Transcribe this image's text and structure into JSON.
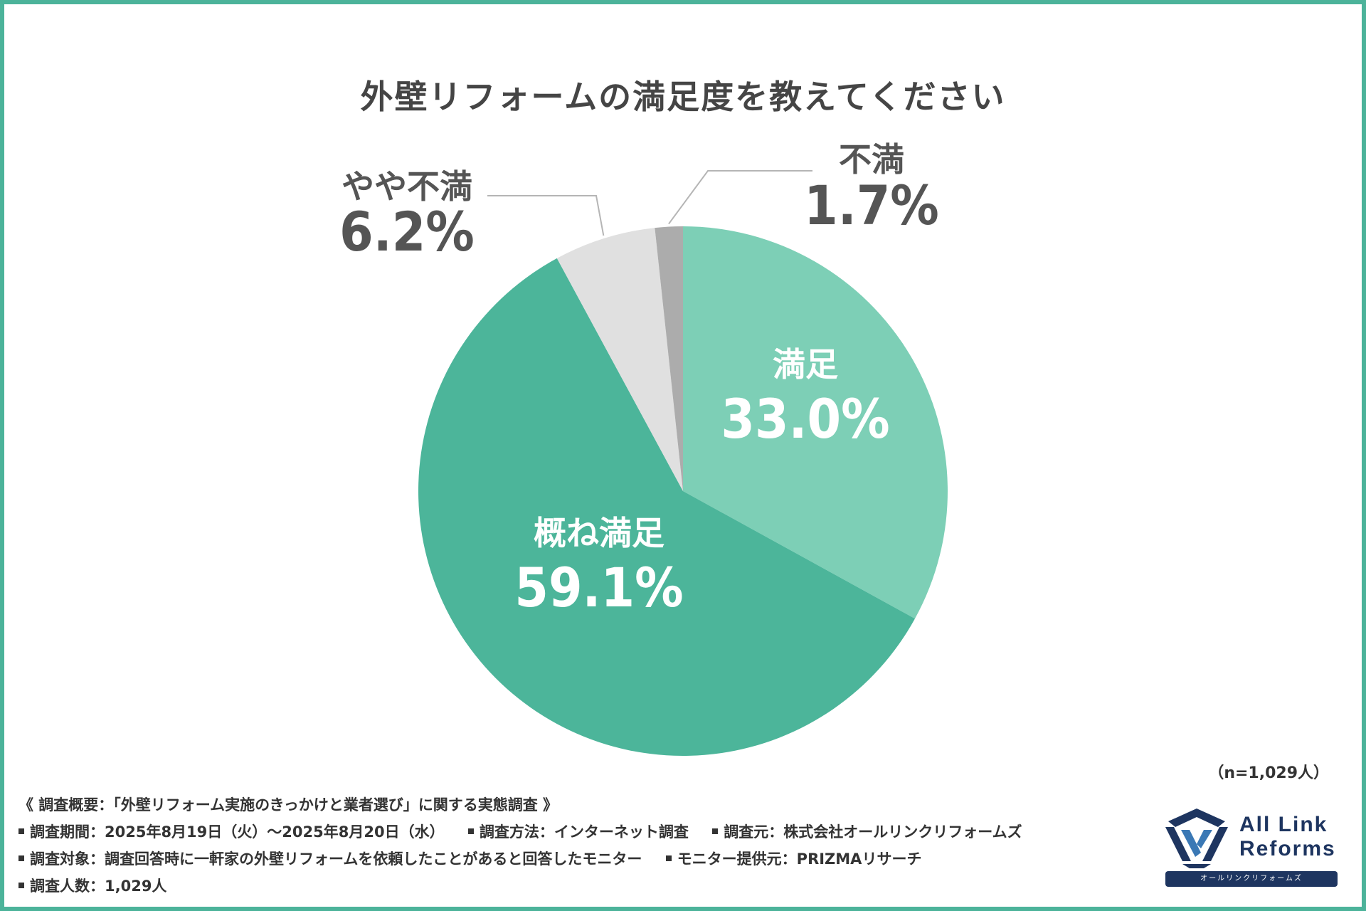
{
  "chart_data": {
    "type": "pie",
    "title": "外壁リフォームの満足度を教えてください",
    "slices": [
      {
        "label": "満足",
        "value_text": "33.0%",
        "value": 33.0,
        "color": "#7dcfb6"
      },
      {
        "label": "概ね満足",
        "value_text": "59.1%",
        "value": 59.1,
        "color": "#4cb59a"
      },
      {
        "label": "やや不満",
        "value_text": "6.2%",
        "value": 6.2,
        "color": "#e0e0e0"
      },
      {
        "label": "不満",
        "value_text": "1.7%",
        "value": 1.7,
        "color": "#acacac"
      }
    ]
  },
  "n_label": "（n=1,029人）",
  "survey": {
    "heading": "《 調査概要：「外壁リフォーム実施のきっかけと業者選び」に関する実態調査 》",
    "period": "調査期間：2025年8月19日（火）～2025年8月20日（水）",
    "method": "調査方法：インターネット調査",
    "source": "調査元：株式会社オールリンクリフォームズ",
    "target": "調査対象：調査回答時に一軒家の外壁リフォームを依頼したことがあると回答したモニター",
    "provider": "モニター提供元：PRIZMAリサーチ",
    "count": "調査人数：1,029人"
  },
  "logo": {
    "line1": "All Link",
    "line2": "Reforms",
    "kana": "オールリンクリフォームズ"
  }
}
